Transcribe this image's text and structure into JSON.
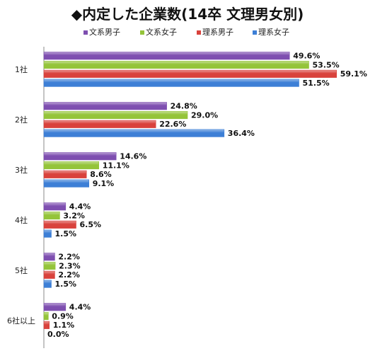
{
  "chart_data": {
    "type": "bar",
    "orientation": "horizontal",
    "title": "◆内定した企業数(14卒 文理男女別)",
    "categories": [
      "1社",
      "2社",
      "3社",
      "4社",
      "5社",
      "6社以上"
    ],
    "series": [
      {
        "name": "文系男子",
        "color": "#7e4fb0",
        "values": [
          49.6,
          24.8,
          14.6,
          4.4,
          2.2,
          4.4
        ]
      },
      {
        "name": "文系女子",
        "color": "#94c43a",
        "values": [
          53.5,
          29.0,
          11.1,
          3.2,
          2.3,
          0.9
        ]
      },
      {
        "name": "理系男子",
        "color": "#d9423c",
        "values": [
          59.1,
          22.6,
          8.6,
          6.5,
          2.2,
          1.1
        ]
      },
      {
        "name": "理系女子",
        "color": "#3d7fd6",
        "values": [
          51.5,
          36.4,
          9.1,
          1.5,
          1.5,
          0.0
        ]
      }
    ],
    "value_suffix": "%",
    "legend_position": "top",
    "grid": false
  }
}
